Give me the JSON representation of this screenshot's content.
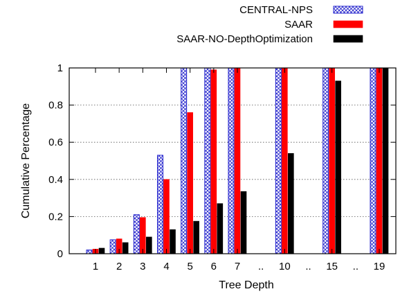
{
  "chart_data": {
    "type": "bar",
    "title": "",
    "xlabel": "Tree Depth",
    "ylabel": "Cumulative Percentage",
    "ylim": [
      0,
      1
    ],
    "yticks": [
      "0",
      "0.2",
      "0.4",
      "0.6",
      "0.8",
      "1"
    ],
    "categories": [
      "1",
      "2",
      "3",
      "4",
      "5",
      "6",
      "7",
      "..",
      "10",
      "..",
      "15",
      "..",
      "19"
    ],
    "grid": "horizontal dotted",
    "legend_position": "top-right outside",
    "series": [
      {
        "name": "CENTRAL-NPS",
        "color": "#2222cc",
        "pattern": "crosshatch",
        "values": [
          0.02,
          0.075,
          0.21,
          0.53,
          1,
          1,
          1,
          null,
          1,
          null,
          1,
          null,
          1
        ]
      },
      {
        "name": "SAAR",
        "color": "#ff0000",
        "pattern": "solid",
        "values": [
          0.025,
          0.08,
          0.195,
          0.4,
          0.76,
          0.99,
          1,
          null,
          1,
          null,
          1,
          null,
          1
        ]
      },
      {
        "name": "SAAR-NO-DepthOptimization",
        "color": "#000000",
        "pattern": "solid",
        "values": [
          0.03,
          0.06,
          0.09,
          0.13,
          0.175,
          0.27,
          0.335,
          null,
          0.54,
          null,
          0.93,
          null,
          1
        ]
      }
    ]
  }
}
